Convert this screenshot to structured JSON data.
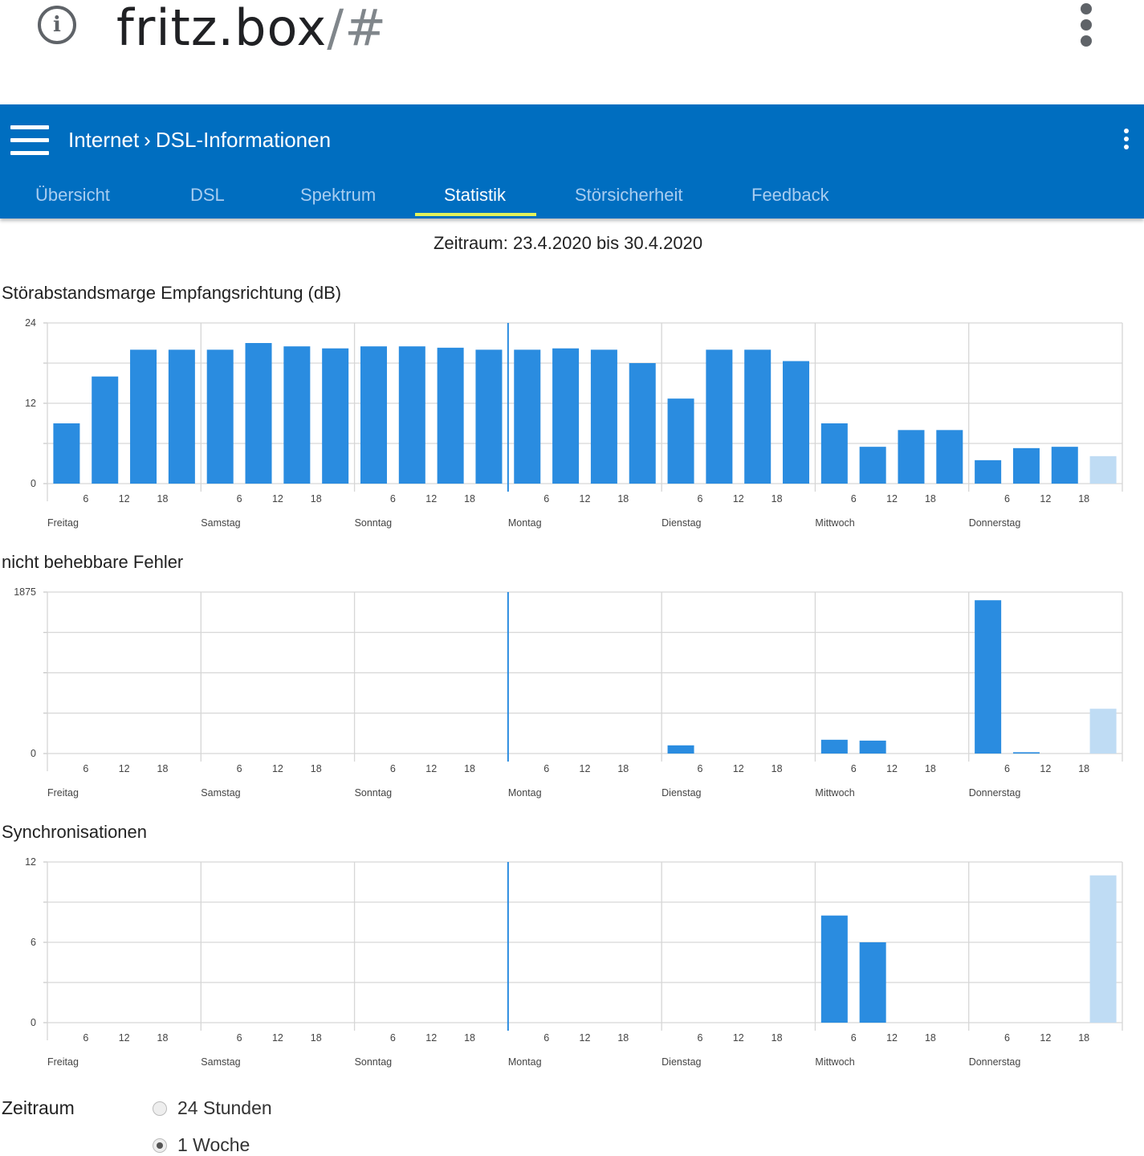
{
  "browser": {
    "host": "fritz.box",
    "path": "/#"
  },
  "header": {
    "breadcrumb": [
      "Internet",
      "DSL-Informationen"
    ],
    "tabs": [
      "Übersicht",
      "DSL",
      "Spektrum",
      "Statistik",
      "Störsicherheit",
      "Feedback"
    ],
    "active_tab": "Statistik"
  },
  "period_text": "Zeitraum: 23.4.2020 bis 30.4.2020",
  "colors": {
    "bar": "#2a8ce0",
    "bar_current": "#bfdcf4",
    "accent": "#006ec0",
    "tab_indicator": "#e3f25a"
  },
  "chart_data": [
    {
      "type": "bar",
      "title": "Störabstandsmarge Empfangsrichtung (dB)",
      "ylim": [
        0,
        24
      ],
      "yticks": [
        "24",
        "12",
        "0"
      ],
      "days": [
        "Freitag",
        "Samstag",
        "Sonntag",
        "Montag",
        "Dienstag",
        "Mittwoch",
        "Donnerstag"
      ],
      "hour_ticks": [
        "6",
        "12",
        "18"
      ],
      "values": [
        9,
        16,
        20,
        20,
        20,
        21,
        20.5,
        20.2,
        20.5,
        20.5,
        20.3,
        20,
        20,
        20.2,
        20,
        18,
        12.7,
        20,
        20,
        18.3,
        9,
        5.5,
        8,
        8,
        3.5,
        5.3,
        5.5,
        4.1
      ],
      "current_index": 27
    },
    {
      "type": "bar",
      "title": "nicht behebbare Fehler",
      "ylim": [
        0,
        1875
      ],
      "yticks": [
        "1875",
        "0"
      ],
      "days": [
        "Freitag",
        "Samstag",
        "Sonntag",
        "Montag",
        "Dienstag",
        "Mittwoch",
        "Donnerstag"
      ],
      "hour_ticks": [
        "6",
        "12",
        "18"
      ],
      "values": [
        0,
        0,
        0,
        0,
        0,
        0,
        0,
        0,
        0,
        0,
        0,
        0,
        0,
        0,
        0,
        0,
        95,
        0,
        0,
        0,
        160,
        150,
        0,
        0,
        1780,
        15,
        0,
        520
      ],
      "current_index": 27
    },
    {
      "type": "bar",
      "title": "Synchronisationen",
      "ylim": [
        0,
        12
      ],
      "yticks": [
        "12",
        "6",
        "0"
      ],
      "days": [
        "Freitag",
        "Samstag",
        "Sonntag",
        "Montag",
        "Dienstag",
        "Mittwoch",
        "Donnerstag"
      ],
      "hour_ticks": [
        "6",
        "12",
        "18"
      ],
      "values": [
        0,
        0,
        0,
        0,
        0,
        0,
        0,
        0,
        0,
        0,
        0,
        0,
        0,
        0,
        0,
        0,
        0,
        0,
        0,
        0,
        8,
        6,
        0,
        0,
        0,
        0,
        0,
        11
      ],
      "current_index": 27
    }
  ],
  "options": {
    "label": "Zeitraum",
    "choices": [
      "24 Stunden",
      "1 Woche"
    ],
    "selected": "1 Woche"
  }
}
